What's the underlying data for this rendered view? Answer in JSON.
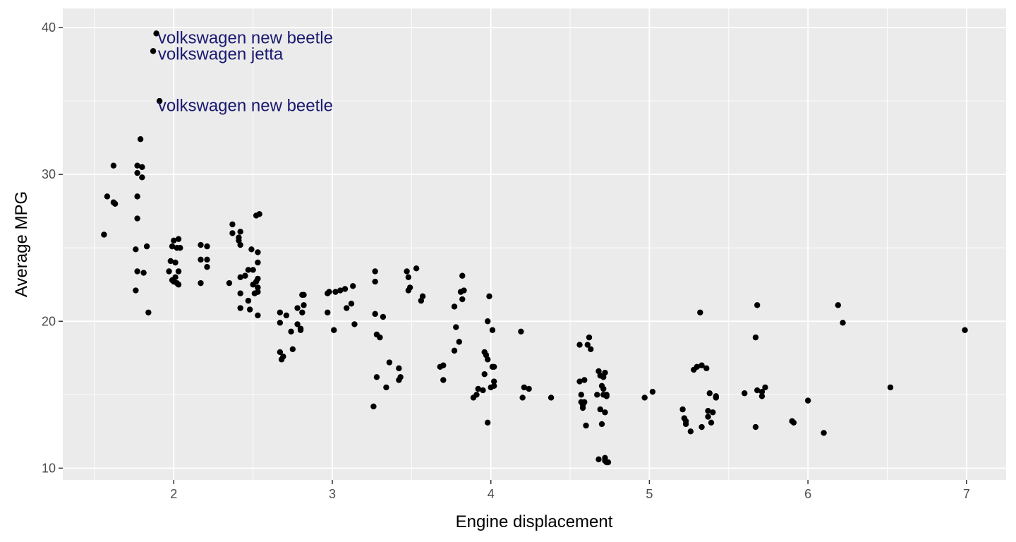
{
  "chart_data": {
    "type": "scatter",
    "title": "",
    "xlabel": "Engine displacement",
    "ylabel": "Average MPG",
    "xlim": [
      1.3,
      7.25
    ],
    "ylim": [
      9.2,
      41.3
    ],
    "x_ticks": [
      2,
      3,
      4,
      5,
      6,
      7
    ],
    "y_ticks": [
      10,
      20,
      30,
      40
    ],
    "x_minor_ticks": [
      1.5,
      2.5,
      3.5,
      4.5,
      5.5,
      6.5
    ],
    "y_minor_ticks": [
      15,
      25,
      35
    ],
    "grid": true,
    "legend": "none",
    "colors": {
      "panel_background": "#ebebeb",
      "grid": "#ffffff",
      "point": "#000000",
      "annotation": "#191970"
    },
    "annotations": [
      {
        "text": "volkswagen new beetle",
        "x": 1.9,
        "y": 39.3
      },
      {
        "text": "volkswagen jetta",
        "x": 1.9,
        "y": 38.2
      },
      {
        "text": "volkswagen new beetle",
        "x": 1.9,
        "y": 34.7
      }
    ],
    "points": [
      [
        1.89,
        39.6
      ],
      [
        1.87,
        38.4
      ],
      [
        1.91,
        35.0
      ],
      [
        1.56,
        25.9
      ],
      [
        1.58,
        28.5
      ],
      [
        1.62,
        30.6
      ],
      [
        1.62,
        28.1
      ],
      [
        1.63,
        28.0
      ],
      [
        1.77,
        30.6
      ],
      [
        1.77,
        30.1
      ],
      [
        1.77,
        28.5
      ],
      [
        1.77,
        27.0
      ],
      [
        1.76,
        24.9
      ],
      [
        1.77,
        23.4
      ],
      [
        1.76,
        22.1
      ],
      [
        1.79,
        32.4
      ],
      [
        1.8,
        30.5
      ],
      [
        1.8,
        29.8
      ],
      [
        1.81,
        23.3
      ],
      [
        1.83,
        25.1
      ],
      [
        1.84,
        20.6
      ],
      [
        1.97,
        23.4
      ],
      [
        1.98,
        24.1
      ],
      [
        1.99,
        25.1
      ],
      [
        2.0,
        25.5
      ],
      [
        2.0,
        22.7
      ],
      [
        2.01,
        24.0
      ],
      [
        2.01,
        23.0
      ],
      [
        2.02,
        25.0
      ],
      [
        2.03,
        25.6
      ],
      [
        2.03,
        23.4
      ],
      [
        2.03,
        22.5
      ],
      [
        2.04,
        25.0
      ],
      [
        1.99,
        22.8
      ],
      [
        2.02,
        22.6
      ],
      [
        2.17,
        25.2
      ],
      [
        2.17,
        24.2
      ],
      [
        2.17,
        22.6
      ],
      [
        2.21,
        25.1
      ],
      [
        2.21,
        24.2
      ],
      [
        2.21,
        23.7
      ],
      [
        2.35,
        22.6
      ],
      [
        2.37,
        26.6
      ],
      [
        2.37,
        26.0
      ],
      [
        2.41,
        25.5
      ],
      [
        2.41,
        25.7
      ],
      [
        2.42,
        26.1
      ],
      [
        2.42,
        25.2
      ],
      [
        2.42,
        23.0
      ],
      [
        2.42,
        21.9
      ],
      [
        2.42,
        20.9
      ],
      [
        2.45,
        23.1
      ],
      [
        2.47,
        23.5
      ],
      [
        2.47,
        21.4
      ],
      [
        2.48,
        20.8
      ],
      [
        2.49,
        24.9
      ],
      [
        2.5,
        23.5
      ],
      [
        2.5,
        22.5
      ],
      [
        2.51,
        21.9
      ],
      [
        2.52,
        27.2
      ],
      [
        2.52,
        22.7
      ],
      [
        2.53,
        24.7
      ],
      [
        2.53,
        24.0
      ],
      [
        2.53,
        22.9
      ],
      [
        2.53,
        22.3
      ],
      [
        2.53,
        22.0
      ],
      [
        2.53,
        20.4
      ],
      [
        2.54,
        27.3
      ],
      [
        2.67,
        20.6
      ],
      [
        2.67,
        19.9
      ],
      [
        2.67,
        17.9
      ],
      [
        2.68,
        17.4
      ],
      [
        2.69,
        17.6
      ],
      [
        2.71,
        20.4
      ],
      [
        2.74,
        19.3
      ],
      [
        2.75,
        18.1
      ],
      [
        2.78,
        20.9
      ],
      [
        2.78,
        19.8
      ],
      [
        2.8,
        19.5
      ],
      [
        2.81,
        21.8
      ],
      [
        2.81,
        20.6
      ],
      [
        2.82,
        21.1
      ],
      [
        2.82,
        21.8
      ],
      [
        2.8,
        19.4
      ],
      [
        2.97,
        21.9
      ],
      [
        2.97,
        20.6
      ],
      [
        2.98,
        22.0
      ],
      [
        3.01,
        19.4
      ],
      [
        3.02,
        22.0
      ],
      [
        3.05,
        22.1
      ],
      [
        3.08,
        22.2
      ],
      [
        3.09,
        20.9
      ],
      [
        3.12,
        21.2
      ],
      [
        3.13,
        22.4
      ],
      [
        3.14,
        19.8
      ],
      [
        3.26,
        14.2
      ],
      [
        3.27,
        20.5
      ],
      [
        3.27,
        22.7
      ],
      [
        3.27,
        23.4
      ],
      [
        3.28,
        19.1
      ],
      [
        3.28,
        16.2
      ],
      [
        3.3,
        18.9
      ],
      [
        3.32,
        20.3
      ],
      [
        3.34,
        15.5
      ],
      [
        3.36,
        17.2
      ],
      [
        3.42,
        16.8
      ],
      [
        3.42,
        16.0
      ],
      [
        3.43,
        16.2
      ],
      [
        3.47,
        23.4
      ],
      [
        3.48,
        23.0
      ],
      [
        3.48,
        22.1
      ],
      [
        3.49,
        22.3
      ],
      [
        3.53,
        23.6
      ],
      [
        3.56,
        21.4
      ],
      [
        3.57,
        21.7
      ],
      [
        3.68,
        16.9
      ],
      [
        3.7,
        16.0
      ],
      [
        3.7,
        17.0
      ],
      [
        3.77,
        21.0
      ],
      [
        3.77,
        18.0
      ],
      [
        3.78,
        19.6
      ],
      [
        3.8,
        18.6
      ],
      [
        3.81,
        22.0
      ],
      [
        3.82,
        21.5
      ],
      [
        3.82,
        23.1
      ],
      [
        3.83,
        22.1
      ],
      [
        3.89,
        14.8
      ],
      [
        3.91,
        15.0
      ],
      [
        3.92,
        15.4
      ],
      [
        3.95,
        15.3
      ],
      [
        3.96,
        17.9
      ],
      [
        3.96,
        16.4
      ],
      [
        3.97,
        17.7
      ],
      [
        3.98,
        17.4
      ],
      [
        3.98,
        13.1
      ],
      [
        3.98,
        20.0
      ],
      [
        3.99,
        21.7
      ],
      [
        4.0,
        15.5
      ],
      [
        4.01,
        19.4
      ],
      [
        4.01,
        16.9
      ],
      [
        4.02,
        15.9
      ],
      [
        4.02,
        16.9
      ],
      [
        4.02,
        15.6
      ],
      [
        4.19,
        19.3
      ],
      [
        4.2,
        14.8
      ],
      [
        4.21,
        15.5
      ],
      [
        4.24,
        15.4
      ],
      [
        4.38,
        14.8
      ],
      [
        4.56,
        18.4
      ],
      [
        4.56,
        15.9
      ],
      [
        4.57,
        15.0
      ],
      [
        4.57,
        14.5
      ],
      [
        4.58,
        14.3
      ],
      [
        4.58,
        14.1
      ],
      [
        4.59,
        16.0
      ],
      [
        4.59,
        14.5
      ],
      [
        4.6,
        12.9
      ],
      [
        4.61,
        18.4
      ],
      [
        4.62,
        18.9
      ],
      [
        4.63,
        18.1
      ],
      [
        4.67,
        15.0
      ],
      [
        4.68,
        16.6
      ],
      [
        4.68,
        10.6
      ],
      [
        4.69,
        16.3
      ],
      [
        4.69,
        14.0
      ],
      [
        4.7,
        15.6
      ],
      [
        4.7,
        13.0
      ],
      [
        4.71,
        16.2
      ],
      [
        4.71,
        15.0
      ],
      [
        4.71,
        15.4
      ],
      [
        4.72,
        16.5
      ],
      [
        4.72,
        13.8
      ],
      [
        4.72,
        10.7
      ],
      [
        4.72,
        10.5
      ],
      [
        4.73,
        15.0
      ],
      [
        4.73,
        14.9
      ],
      [
        4.73,
        10.4
      ],
      [
        4.74,
        10.4
      ],
      [
        4.97,
        14.8
      ],
      [
        5.02,
        15.2
      ],
      [
        5.21,
        14.0
      ],
      [
        5.22,
        13.4
      ],
      [
        5.23,
        13.2
      ],
      [
        5.23,
        13.0
      ],
      [
        5.26,
        12.5
      ],
      [
        5.28,
        16.7
      ],
      [
        5.3,
        16.9
      ],
      [
        5.32,
        20.6
      ],
      [
        5.33,
        17.0
      ],
      [
        5.33,
        12.8
      ],
      [
        5.36,
        16.8
      ],
      [
        5.37,
        13.5
      ],
      [
        5.37,
        13.9
      ],
      [
        5.38,
        15.1
      ],
      [
        5.39,
        13.1
      ],
      [
        5.4,
        13.8
      ],
      [
        5.42,
        14.9
      ],
      [
        5.42,
        14.8
      ],
      [
        5.6,
        15.1
      ],
      [
        5.67,
        18.9
      ],
      [
        5.67,
        12.8
      ],
      [
        5.68,
        15.3
      ],
      [
        5.68,
        21.1
      ],
      [
        5.71,
        14.9
      ],
      [
        5.71,
        15.2
      ],
      [
        5.73,
        15.5
      ],
      [
        5.9,
        13.2
      ],
      [
        5.91,
        13.1
      ],
      [
        6.0,
        14.6
      ],
      [
        6.1,
        12.4
      ],
      [
        6.19,
        21.1
      ],
      [
        6.22,
        19.9
      ],
      [
        6.52,
        15.5
      ],
      [
        6.99,
        19.4
      ]
    ]
  }
}
